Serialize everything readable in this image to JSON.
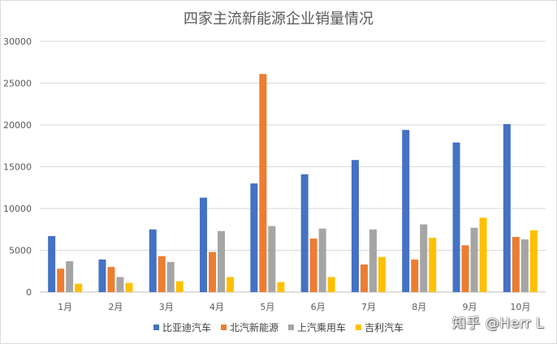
{
  "chart_data": {
    "type": "bar",
    "title": "四家主流新能源企业销量情况",
    "xlabel": "",
    "ylabel": "",
    "ylim": [
      0,
      30000
    ],
    "yticks": [
      0,
      5000,
      10000,
      15000,
      20000,
      25000,
      30000
    ],
    "grid": true,
    "legend_position": "bottom",
    "categories": [
      "1月",
      "2月",
      "3月",
      "4月",
      "5月",
      "6月",
      "7月",
      "8月",
      "9月",
      "10月"
    ],
    "series": [
      {
        "name": "比亚迪汽车",
        "color": "#4472c4",
        "values": [
          6700,
          3900,
          7500,
          11300,
          13000,
          14100,
          15800,
          19400,
          17900,
          20100
        ]
      },
      {
        "name": "北汽新能源",
        "color": "#ed7d31",
        "values": [
          2800,
          3000,
          4300,
          4800,
          26100,
          6400,
          3300,
          3900,
          5600,
          6600
        ]
      },
      {
        "name": "上汽乘用车",
        "color": "#a5a5a5",
        "values": [
          3700,
          1800,
          3600,
          7300,
          7900,
          7600,
          7500,
          8100,
          7700,
          6300
        ]
      },
      {
        "name": "吉利汽车",
        "color": "#ffc000",
        "values": [
          1000,
          1100,
          1300,
          1800,
          1200,
          1800,
          4200,
          6500,
          8900,
          7400
        ]
      }
    ]
  },
  "watermark": "知乎 @Herr L"
}
